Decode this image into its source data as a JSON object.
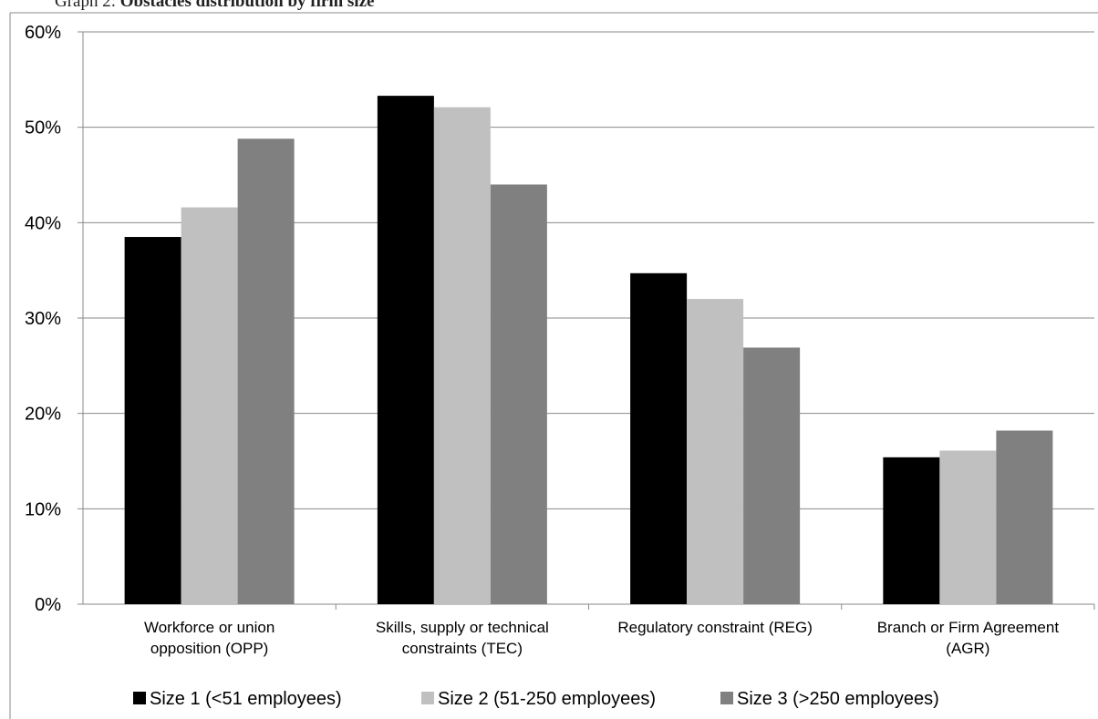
{
  "caption": {
    "prefix": "Graph 2: ",
    "title": "Obstacles distribution by firm size"
  },
  "chart_data": {
    "type": "bar",
    "categories": [
      [
        "Workforce or union",
        "opposition (OPP)"
      ],
      [
        "Skills, supply or technical",
        "constraints (TEC)"
      ],
      [
        "Regulatory constraint (REG)"
      ],
      [
        "Branch or Firm Agreement",
        "(AGR)"
      ]
    ],
    "series": [
      {
        "name": "Size 1 (<51 employees)",
        "color": "#000000",
        "values": [
          38.5,
          53.3,
          34.7,
          15.4
        ]
      },
      {
        "name": "Size 2 (51-250 employees)",
        "color": "#c0c0c0",
        "values": [
          41.6,
          52.1,
          32.0,
          16.1
        ]
      },
      {
        "name": "Size 3 (>250 employees)",
        "color": "#808080",
        "values": [
          48.8,
          44.0,
          26.9,
          18.2
        ]
      }
    ],
    "ylim": [
      0,
      60
    ],
    "yticks": [
      0,
      10,
      20,
      30,
      40,
      50,
      60
    ],
    "ytick_suffix": "%",
    "grid": true,
    "legend_position": "bottom"
  }
}
